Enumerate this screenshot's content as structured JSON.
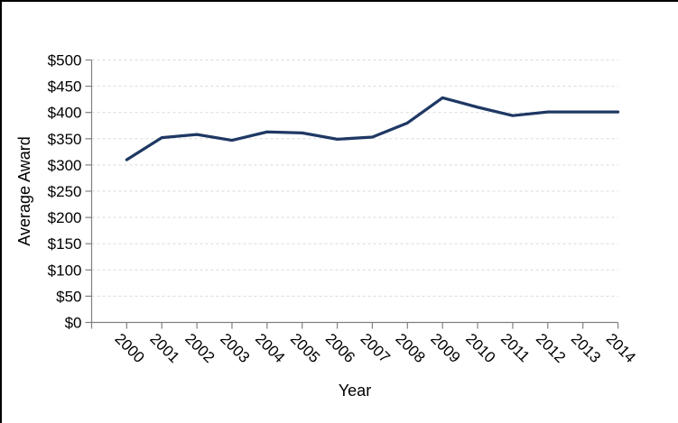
{
  "page": {
    "background": "#ffffff",
    "frame_border_color": "#000000"
  },
  "chart_data": {
    "type": "line",
    "title": "",
    "xlabel": "Year",
    "ylabel": "Average Award",
    "categories": [
      "2000",
      "2001",
      "2002",
      "2003",
      "2004",
      "2005",
      "2006",
      "2007",
      "2008",
      "2009",
      "2010",
      "2011",
      "2012",
      "2013",
      "2014"
    ],
    "series": [
      {
        "name": "Average Award",
        "values": [
          310,
          352,
          358,
          347,
          363,
          361,
          349,
          353,
          380,
          428,
          410,
          394,
          401,
          401,
          401
        ]
      }
    ],
    "ylim": [
      0,
      500
    ],
    "ytick_step": 50,
    "ytick_labels": [
      "$0",
      "$50",
      "$100",
      "$150",
      "$200",
      "$250",
      "$300",
      "$350",
      "$400",
      "$450",
      "$500"
    ],
    "grid": "horizontal-dashed",
    "legend": "none",
    "x_tick_label_rotation_deg": 45,
    "colors": {
      "line": "#1f3864",
      "gridline": "#d9d9d9",
      "axis": "#808080",
      "text": "#000000"
    }
  }
}
